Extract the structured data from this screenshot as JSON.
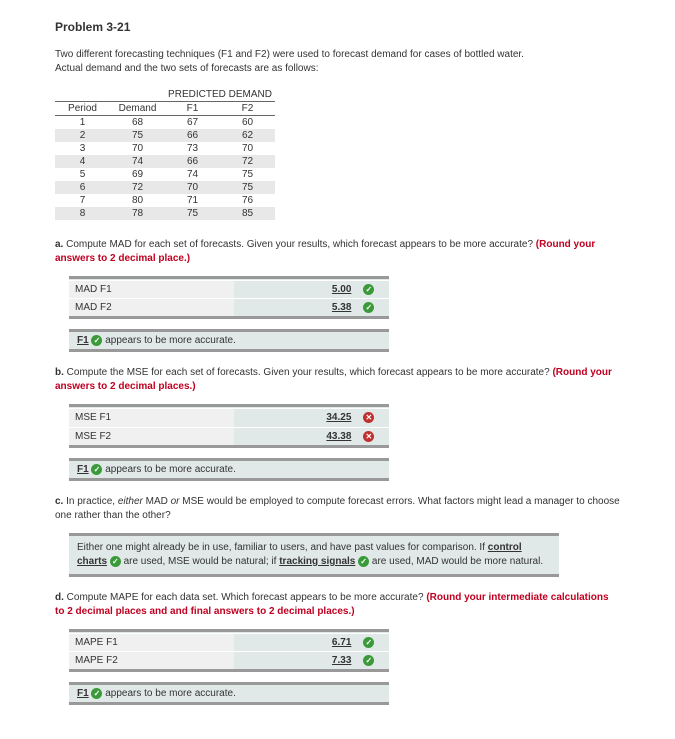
{
  "title": "Problem 3-21",
  "intro_l1": "Two different forecasting techniques (F1 and F2) were used to forecast demand for cases of bottled water.",
  "intro_l2": "Actual demand and the two sets of forecasts are as follows:",
  "table": {
    "group_label": "PREDICTED DEMAND",
    "cols": [
      "Period",
      "Demand",
      "F1",
      "F2"
    ],
    "rows": [
      [
        "1",
        "68",
        "67",
        "60"
      ],
      [
        "2",
        "75",
        "66",
        "62"
      ],
      [
        "3",
        "70",
        "73",
        "70"
      ],
      [
        "4",
        "74",
        "66",
        "72"
      ],
      [
        "5",
        "69",
        "74",
        "75"
      ],
      [
        "6",
        "72",
        "70",
        "75"
      ],
      [
        "7",
        "80",
        "71",
        "76"
      ],
      [
        "8",
        "78",
        "75",
        "85"
      ]
    ]
  },
  "qa": {
    "letter": "a.",
    "text": "Compute MAD for each set of forecasts. Given your results, which forecast appears to be more accurate?",
    "round": "(Round your answers to 2 decimal place.)",
    "rows": [
      {
        "label": "MAD F1",
        "value": "5.00",
        "ok": true
      },
      {
        "label": "MAD F2",
        "value": "5.38",
        "ok": true
      }
    ],
    "result_f": "F1",
    "result_txt": "appears to be more accurate."
  },
  "qb": {
    "letter": "b.",
    "text": "Compute the MSE for each set of forecasts. Given your results, which forecast appears to be more accurate?",
    "round": "(Round your answers to 2 decimal places.)",
    "rows": [
      {
        "label": "MSE F1",
        "value": "34.25",
        "ok": false
      },
      {
        "label": "MSE F2",
        "value": "43.38",
        "ok": false
      }
    ],
    "result_f": "F1",
    "result_txt": "appears to be more accurate."
  },
  "qc": {
    "letter": "c.",
    "text_l1": "In practice, ",
    "text_em": "either",
    "text_l2": " MAD ",
    "text_em2": "or",
    "text_l3": " MSE would be employed to compute forecast errors. What factors might lead a manager to choose one rather than the other?",
    "ans_p1": "Either one might already be in use, familiar to users, and have past values for comparison. If ",
    "kw1": "control charts",
    "ans_p2": " are used, MSE would be natural; if ",
    "kw2": "tracking signals",
    "ans_p3": " are used, MAD would be more natural."
  },
  "qd": {
    "letter": "d.",
    "text": "Compute MAPE for each data set. Which forecast appears to be more accurate?",
    "round": "(Round your intermediate calculations to 2 decimal places and and final answers to 2 decimal places.)",
    "rows": [
      {
        "label": "MAPE F1",
        "value": "6.71",
        "ok": true
      },
      {
        "label": "MAPE F2",
        "value": "7.33",
        "ok": true
      }
    ],
    "result_f": "F1",
    "result_txt": "appears to be more accurate."
  },
  "icons": {
    "ok": "✓",
    "bad": "✕"
  }
}
